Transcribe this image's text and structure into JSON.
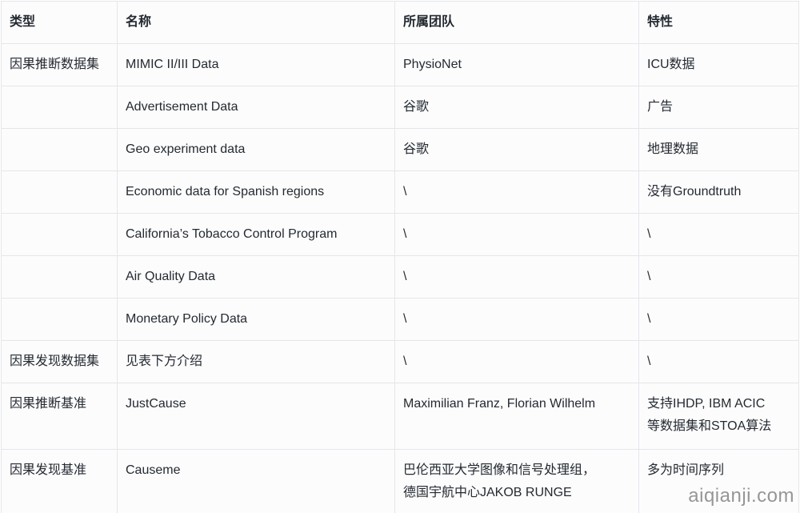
{
  "colors": {
    "text": "#242a31",
    "border": "#e4e6ea",
    "cell_background": "#fcfcfd",
    "watermark_text": "#969696"
  },
  "table": {
    "columns": [
      {
        "key": "type",
        "label": "类型"
      },
      {
        "key": "name",
        "label": "名称"
      },
      {
        "key": "team",
        "label": "所属团队"
      },
      {
        "key": "feature",
        "label": "特性"
      }
    ],
    "rows": [
      {
        "type": "因果推断数据集",
        "name": "MIMIC II/III Data",
        "team": "PhysioNet",
        "feature": "ICU数据"
      },
      {
        "type": "",
        "name": "Advertisement Data",
        "team": "谷歌",
        "feature": "广告"
      },
      {
        "type": "",
        "name": "Geo experiment data",
        "team": "谷歌",
        "feature": "地理数据"
      },
      {
        "type": "",
        "name": "Economic data for Spanish regions",
        "team": "\\",
        "feature": "没有Groundtruth"
      },
      {
        "type": "",
        "name": "California’s Tobacco Control Program",
        "team": "\\",
        "feature": "\\"
      },
      {
        "type": "",
        "name": "Air Quality Data",
        "team": "\\",
        "feature": "\\"
      },
      {
        "type": "",
        "name": "Monetary Policy Data",
        "team": "\\",
        "feature": "\\"
      },
      {
        "type": "因果发现数据集",
        "name": "见表下方介绍",
        "team": "\\",
        "feature": "\\"
      },
      {
        "type": "因果推断基准",
        "name": "JustCause",
        "team": "Maximilian Franz, Florian Wilhelm",
        "feature": "支持IHDP, IBM ACIC\n等数据集和STOA算法"
      },
      {
        "type": "因果发现基准",
        "name": "Causeme",
        "team": "巴伦西亚大学图像和信号处理组，\n德国宇航中心JAKOB RUNGE",
        "feature": "多为时间序列"
      }
    ]
  },
  "watermark": {
    "text": "aiqianji.com"
  }
}
